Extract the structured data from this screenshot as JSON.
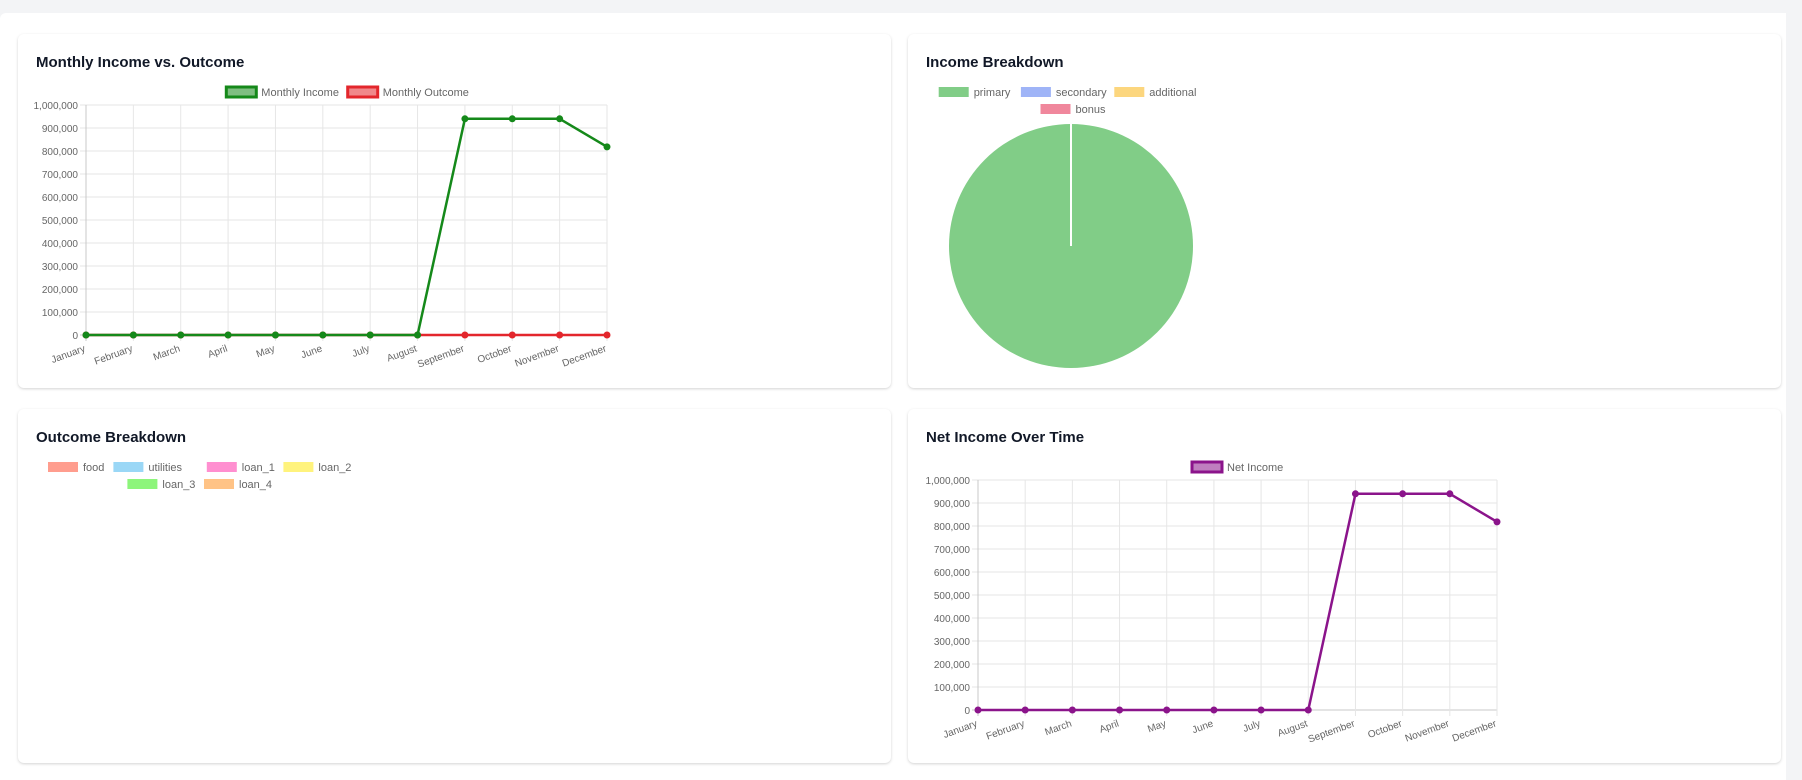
{
  "cards": {
    "income_outcome": {
      "title": "Monthly Income vs. Outcome"
    },
    "income_breakdown": {
      "title": "Income Breakdown"
    },
    "outcome_breakdown": {
      "title": "Outcome Breakdown"
    },
    "net_income": {
      "title": "Net Income Over Time"
    }
  },
  "chart_data": [
    {
      "type": "line",
      "categories": [
        "January",
        "February",
        "March",
        "April",
        "May",
        "June",
        "July",
        "August",
        "September",
        "October",
        "November",
        "December"
      ],
      "series": [
        {
          "name": "Monthly Income",
          "color": "#15891a",
          "values": [
            0,
            0,
            0,
            0,
            0,
            0,
            0,
            0,
            940000,
            940000,
            940000,
            818000
          ]
        },
        {
          "name": "Monthly Outcome",
          "color": "#e3262c",
          "values": [
            0,
            0,
            0,
            0,
            0,
            0,
            0,
            0,
            0,
            0,
            0,
            0
          ]
        }
      ],
      "yticks": [
        "0",
        "100,000",
        "200,000",
        "300,000",
        "400,000",
        "500,000",
        "600,000",
        "700,000",
        "800,000",
        "900,000",
        "1,000,000"
      ],
      "ylim": [
        0,
        1000000
      ],
      "grid": true,
      "legend": "top"
    },
    {
      "type": "pie",
      "labels": [
        "primary",
        "secondary",
        "additional",
        "bonus"
      ],
      "colors": [
        "#81cd87",
        "#9fb4f7",
        "#fcd67e",
        "#f0879c"
      ],
      "values": [
        100,
        0,
        0,
        0
      ],
      "legend": "top"
    },
    {
      "type": "pie",
      "labels": [
        "food",
        "utilities",
        "loan_1",
        "loan_2",
        "loan_3",
        "loan_4"
      ],
      "colors": [
        "#ff9d8e",
        "#9ad7f6",
        "#ff8fd0",
        "#fff37d",
        "#8df57b",
        "#ffc386"
      ],
      "values": [
        0,
        0,
        0,
        0,
        0,
        0
      ],
      "legend": "top"
    },
    {
      "type": "line",
      "categories": [
        "January",
        "February",
        "March",
        "April",
        "May",
        "June",
        "July",
        "August",
        "September",
        "October",
        "November",
        "December"
      ],
      "series": [
        {
          "name": "Net Income",
          "color": "#8b148b",
          "values": [
            0,
            0,
            0,
            0,
            0,
            0,
            0,
            0,
            940000,
            940000,
            940000,
            818000
          ]
        }
      ],
      "yticks": [
        "0",
        "100,000",
        "200,000",
        "300,000",
        "400,000",
        "500,000",
        "600,000",
        "700,000",
        "800,000",
        "900,000",
        "1,000,000"
      ],
      "ylim": [
        0,
        1000000
      ],
      "grid": true,
      "legend": "top"
    }
  ]
}
